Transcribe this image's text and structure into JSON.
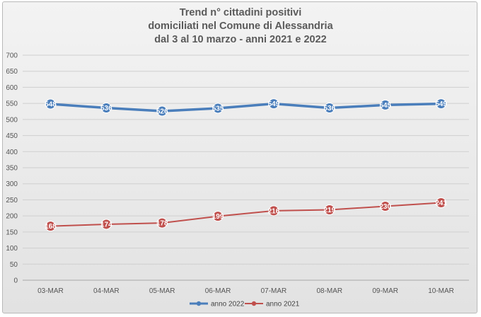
{
  "chart_data": {
    "type": "line",
    "title_lines": [
      "Trend n° cittadini positivi",
      "domiciliati nel Comune di Alessandria",
      "dal 3 al 10 marzo - anni 2021 e 2022"
    ],
    "categories": [
      "03-MAR",
      "04-MAR",
      "05-MAR",
      "06-MAR",
      "07-MAR",
      "08-MAR",
      "09-MAR",
      "10-MAR"
    ],
    "ylim": [
      0,
      700
    ],
    "yticks": [
      0,
      50,
      100,
      150,
      200,
      250,
      300,
      350,
      400,
      450,
      500,
      550,
      600,
      650,
      700
    ],
    "grid": true,
    "legend_position": "bottom",
    "series": [
      {
        "name": "anno 2022",
        "color": "#4a7ebb",
        "values": [
          548,
          536,
          526,
          535,
          549,
          536,
          545,
          549
        ],
        "labels": [
          "548",
          "536",
          "526",
          "535",
          "549",
          "536",
          "545",
          "549"
        ]
      },
      {
        "name": "anno 2021",
        "color": "#c0504d",
        "values": [
          168,
          174,
          178,
          199,
          216,
          219,
          230,
          241
        ],
        "labels": [
          "168",
          "174",
          "178",
          "199",
          "216",
          "219",
          "230",
          "241"
        ]
      }
    ]
  }
}
